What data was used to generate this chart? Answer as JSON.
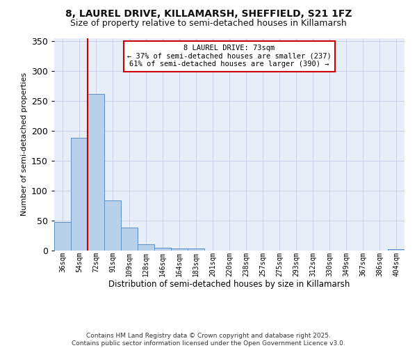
{
  "title": "8, LAUREL DRIVE, KILLAMARSH, SHEFFIELD, S21 1FZ",
  "subtitle": "Size of property relative to semi-detached houses in Killamarsh",
  "xlabel": "Distribution of semi-detached houses by size in Killamarsh",
  "ylabel": "Number of semi-detached properties",
  "categories": [
    "36sqm",
    "54sqm",
    "72sqm",
    "91sqm",
    "109sqm",
    "128sqm",
    "146sqm",
    "164sqm",
    "183sqm",
    "201sqm",
    "220sqm",
    "238sqm",
    "257sqm",
    "275sqm",
    "293sqm",
    "312sqm",
    "330sqm",
    "349sqm",
    "367sqm",
    "386sqm",
    "404sqm"
  ],
  "values": [
    48,
    188,
    262,
    84,
    38,
    11,
    5,
    3,
    3,
    0,
    0,
    0,
    0,
    0,
    0,
    0,
    0,
    0,
    0,
    0,
    2
  ],
  "bar_color": "#b8d0ea",
  "bar_edge_color": "#5b8fc9",
  "bg_color": "#e8eef8",
  "grid_color": "#c8d0e8",
  "marker_color": "#cc0000",
  "annotation_line1": "8 LAUREL DRIVE: 73sqm",
  "annotation_line2": "← 37% of semi-detached houses are smaller (237)",
  "annotation_line3": "61% of semi-detached houses are larger (390) →",
  "annotation_box_color": "#ffffff",
  "annotation_box_edge": "#cc0000",
  "footer_line1": "Contains HM Land Registry data © Crown copyright and database right 2025.",
  "footer_line2": "Contains public sector information licensed under the Open Government Licence v3.0.",
  "ylim": [
    0,
    355
  ],
  "yticks": [
    0,
    50,
    100,
    150,
    200,
    250,
    300,
    350
  ],
  "title_fontsize": 10,
  "subtitle_fontsize": 9,
  "ylabel_fontsize": 8,
  "xlabel_fontsize": 8.5,
  "tick_fontsize": 7,
  "annot_fontsize": 7.5,
  "footer_fontsize": 6.5
}
